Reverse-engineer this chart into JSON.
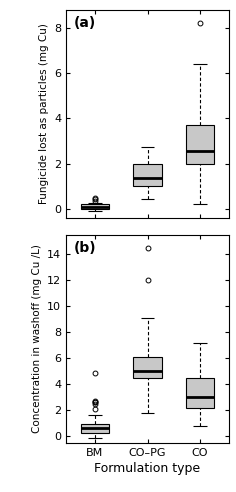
{
  "title_a": "(a)",
  "title_b": "(b)",
  "xlabel": "Formulation type",
  "ylabel_a": "Fungicide lost as particles (mg Cu)",
  "ylabel_b": "Concentration in washoff (mg Cu /L)",
  "categories": [
    "BM",
    "CO–PG",
    "CO"
  ],
  "panel_a": {
    "BM": {
      "whisker_low": -0.08,
      "q1": 0.0,
      "median": 0.1,
      "q3": 0.2,
      "whisker_high": 0.25,
      "outliers": [
        0.35,
        0.42,
        0.48
      ]
    },
    "CO-PG": {
      "whisker_low": 0.45,
      "q1": 1.0,
      "median": 1.35,
      "q3": 2.0,
      "whisker_high": 2.75,
      "outliers": []
    },
    "CO": {
      "whisker_low": 0.2,
      "q1": 2.0,
      "median": 2.55,
      "q3": 3.7,
      "whisker_high": 6.4,
      "outliers": [
        8.2
      ]
    }
  },
  "panel_b": {
    "BM": {
      "whisker_low": -0.1,
      "q1": 0.25,
      "median": 0.65,
      "q3": 0.95,
      "whisker_high": 1.6,
      "outliers": [
        2.1,
        2.5,
        2.6,
        2.65,
        2.75,
        4.9
      ]
    },
    "CO-PG": {
      "whisker_low": 1.8,
      "q1": 4.5,
      "median": 5.05,
      "q3": 6.1,
      "whisker_high": 9.1,
      "outliers": [
        12.0,
        14.5
      ]
    },
    "CO": {
      "whisker_low": 0.8,
      "q1": 2.2,
      "median": 3.0,
      "q3": 4.5,
      "whisker_high": 7.2,
      "outliers": []
    }
  },
  "ylim_a": [
    -0.4,
    8.8
  ],
  "ylim_b": [
    -0.5,
    15.5
  ],
  "yticks_a": [
    0,
    2,
    4,
    6,
    8
  ],
  "yticks_b": [
    0,
    2,
    4,
    6,
    8,
    10,
    12,
    14
  ],
  "box_color": "#c8c8c8",
  "median_color": "#000000",
  "background_color": "#ffffff"
}
